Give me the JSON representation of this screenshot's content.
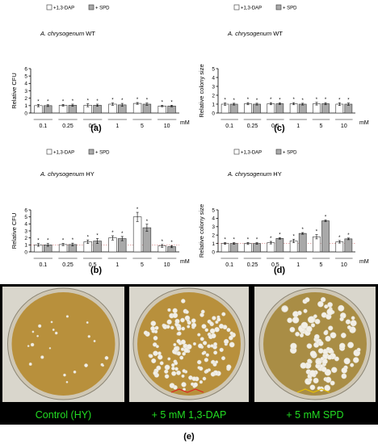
{
  "chart_data": [
    {
      "panel": "(a)",
      "type": "bar",
      "title_species": "A. chrysogenum",
      "title_strain": "WT",
      "ylabel": "Relative CFU",
      "xunit": "mM",
      "categories": [
        "0.1",
        "0.25",
        "0.5",
        "1",
        "5",
        "10"
      ],
      "ylim": [
        0,
        6
      ],
      "yticks": [
        "0",
        "1",
        "2",
        "3",
        "4",
        "5",
        "6"
      ],
      "legend": [
        "+1,3-DAP",
        "+ SPD"
      ],
      "series": [
        {
          "name": "+1,3-DAP",
          "values": [
            1.0,
            1.05,
            1.05,
            1.2,
            1.3,
            0.95
          ],
          "errors": [
            0.15,
            0.12,
            0.2,
            0.15,
            0.12,
            0.1
          ]
        },
        {
          "name": "+ SPD",
          "values": [
            1.0,
            1.05,
            1.05,
            1.1,
            1.2,
            0.95
          ],
          "errors": [
            0.12,
            0.15,
            0.15,
            0.2,
            0.15,
            0.1
          ]
        }
      ]
    },
    {
      "panel": "(b)",
      "type": "bar",
      "title_species": "A. chrysogenum",
      "title_strain": "HY",
      "ylabel": "Relative CFU",
      "xunit": "mM",
      "categories": [
        "0.1",
        "0.25",
        "0.5",
        "1",
        "5",
        "10"
      ],
      "ylim": [
        0,
        6
      ],
      "yticks": [
        "0",
        "1",
        "2",
        "3",
        "4",
        "5",
        "6"
      ],
      "legend": [
        "+1,3-DAP",
        "+ SPD"
      ],
      "series": [
        {
          "name": "+1,3-DAP",
          "values": [
            1.0,
            1.05,
            1.45,
            2.0,
            5.0,
            0.85
          ],
          "errors": [
            0.2,
            0.15,
            0.25,
            0.3,
            0.65,
            0.2
          ]
        },
        {
          "name": "+ SPD",
          "values": [
            1.0,
            1.05,
            1.55,
            1.9,
            3.45,
            0.75
          ],
          "errors": [
            0.2,
            0.2,
            0.35,
            0.3,
            0.5,
            0.15
          ]
        }
      ]
    },
    {
      "panel": "(c)",
      "type": "bar",
      "title_species": "A. chrysogenum",
      "title_strain": "WT",
      "ylabel": "Relative colony size",
      "xunit": "mM",
      "categories": [
        "0.1",
        "0.25",
        "0.5",
        "1",
        "5",
        "10"
      ],
      "ylim": [
        0,
        5
      ],
      "yticks": [
        "0",
        "1",
        "2",
        "3",
        "4",
        "5"
      ],
      "legend": [
        "+1,3-DAP",
        "+ SPD"
      ],
      "series": [
        {
          "name": "+1,3-DAP",
          "values": [
            1.0,
            1.05,
            1.05,
            1.05,
            1.05,
            1.0
          ],
          "errors": [
            0.12,
            0.12,
            0.12,
            0.12,
            0.15,
            0.15
          ]
        },
        {
          "name": "+ SPD",
          "values": [
            1.0,
            1.0,
            1.05,
            1.0,
            1.05,
            1.0
          ],
          "errors": [
            0.1,
            0.1,
            0.1,
            0.1,
            0.12,
            0.12
          ]
        }
      ]
    },
    {
      "panel": "(d)",
      "type": "bar",
      "title_species": "A. chrysogenum",
      "title_strain": "HY",
      "ylabel": "Relative colony size",
      "xunit": "mM",
      "categories": [
        "0.1",
        "0.25",
        "0.5",
        "1",
        "5",
        "10"
      ],
      "ylim": [
        0,
        5
      ],
      "yticks": [
        "0",
        "1",
        "2",
        "3",
        "4",
        "5"
      ],
      "legend": [
        "+1,3-DAP",
        "+ SPD"
      ],
      "series": [
        {
          "name": "+1,3-DAP",
          "values": [
            1.0,
            1.0,
            1.1,
            1.3,
            1.8,
            1.2
          ],
          "errors": [
            0.1,
            0.12,
            0.15,
            0.2,
            0.25,
            0.15
          ]
        },
        {
          "name": "+ SPD",
          "values": [
            1.0,
            1.0,
            1.6,
            2.2,
            3.7,
            1.55
          ],
          "errors": [
            0.1,
            0.1,
            0.08,
            0.1,
            0.1,
            0.1
          ]
        }
      ]
    }
  ],
  "photos": {
    "panel_label": "(e)",
    "captions": [
      "Control (HY)",
      "+ 5 mM 1,3-DAP",
      "+ 5 mM SPD"
    ],
    "caption_color": "#22dd22",
    "background": "#000000"
  },
  "colors": {
    "bar_dap": "#ffffff",
    "bar_spd": "#a9a9a9",
    "dish_agar": "#b8903c",
    "colony": "#f2efe6"
  }
}
